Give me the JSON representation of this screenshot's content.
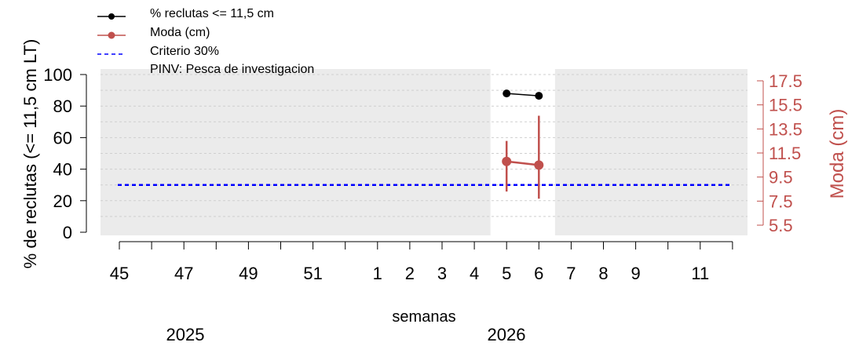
{
  "chart_data": {
    "type": "line",
    "xlabel": "semanas",
    "ylabel": "% de reclutas (<= 11,5 cm LT)",
    "y2label": "Moda (cm)",
    "x_ticks": [
      45,
      46,
      47,
      48,
      49,
      50,
      51,
      52,
      1,
      2,
      3,
      4,
      5,
      6,
      7,
      8,
      9,
      10,
      11,
      12
    ],
    "x_tick_labels": [
      "45",
      "47",
      "49",
      "51",
      "1",
      "2",
      "3",
      "4",
      "5",
      "6",
      "7",
      "8",
      "9",
      "11"
    ],
    "x_label_weeks": [
      45,
      47,
      49,
      51,
      1,
      2,
      3,
      4,
      5,
      6,
      7,
      8,
      9,
      11
    ],
    "year_labels": [
      "2025",
      "2026"
    ],
    "ylim": [
      0,
      100
    ],
    "y_ticks": [
      0,
      20,
      40,
      60,
      80,
      100
    ],
    "y2lim": [
      5.5,
      17.5
    ],
    "y2_ticks": [
      5.5,
      7.5,
      9.5,
      11.5,
      13.5,
      15.5,
      17.5
    ],
    "grid": true,
    "legend_position": "top-left",
    "legend": [
      {
        "label": "% reclutas <= 11,5 cm",
        "color": "#000000",
        "style": "line-point"
      },
      {
        "label": "Moda (cm)",
        "color": "#c0504d",
        "style": "line-point"
      },
      {
        "label": "Criterio 30%",
        "color": "#0000ff",
        "style": "dashed"
      },
      {
        "label": "PINV: Pesca de investigacion",
        "color": "none",
        "style": "none"
      }
    ],
    "shaded_periods": [
      {
        "from_week": 45,
        "to_week": 4,
        "label": ""
      },
      {
        "from_week": 7,
        "to_week": 12,
        "label": ""
      }
    ],
    "series": [
      {
        "name": "% reclutas <= 11,5 cm",
        "axis": "left",
        "color": "#000000",
        "x": [
          5,
          6
        ],
        "y": [
          88,
          86.5
        ]
      },
      {
        "name": "Moda (cm)",
        "axis": "right",
        "color": "#c0504d",
        "x": [
          5,
          6
        ],
        "y": [
          10.8,
          10.5
        ],
        "y_low": [
          8.3,
          7.7
        ],
        "y_high": [
          12.5,
          14.6
        ]
      }
    ],
    "reference_line": {
      "name": "Criterio 30%",
      "axis": "left",
      "y": 30,
      "color": "#0000ff"
    }
  }
}
